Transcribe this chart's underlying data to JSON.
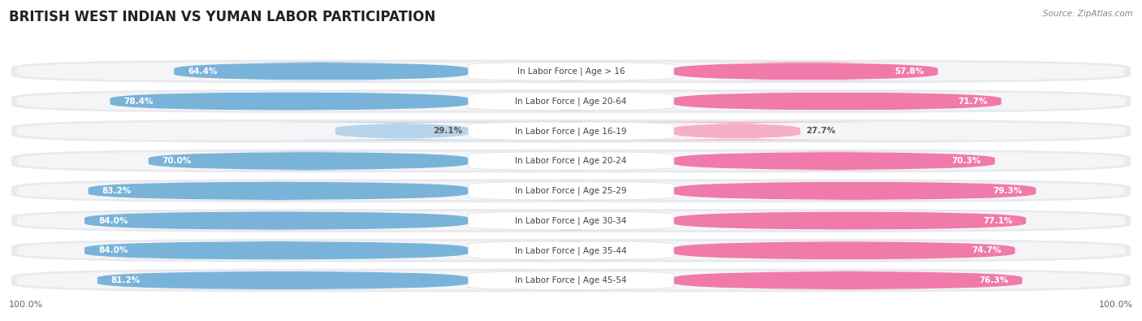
{
  "title": "BRITISH WEST INDIAN VS YUMAN LABOR PARTICIPATION",
  "source": "Source: ZipAtlas.com",
  "categories": [
    "In Labor Force | Age > 16",
    "In Labor Force | Age 20-64",
    "In Labor Force | Age 16-19",
    "In Labor Force | Age 20-24",
    "In Labor Force | Age 25-29",
    "In Labor Force | Age 30-34",
    "In Labor Force | Age 35-44",
    "In Labor Force | Age 45-54"
  ],
  "british_values": [
    64.4,
    78.4,
    29.1,
    70.0,
    83.2,
    84.0,
    84.0,
    81.2
  ],
  "yuman_values": [
    57.8,
    71.7,
    27.7,
    70.3,
    79.3,
    77.1,
    74.7,
    76.3
  ],
  "british_color": "#7ab3d9",
  "british_color_light": "#b8d4ea",
  "yuman_color": "#f07aaa",
  "yuman_color_light": "#f5aec8",
  "row_bg_color": "#e8eaed",
  "row_inner_color": "#f5f5f7",
  "max_value": 100.0,
  "title_fontsize": 12,
  "label_fontsize": 7.5,
  "value_fontsize": 7.5,
  "legend_fontsize": 9,
  "footer_fontsize": 8
}
